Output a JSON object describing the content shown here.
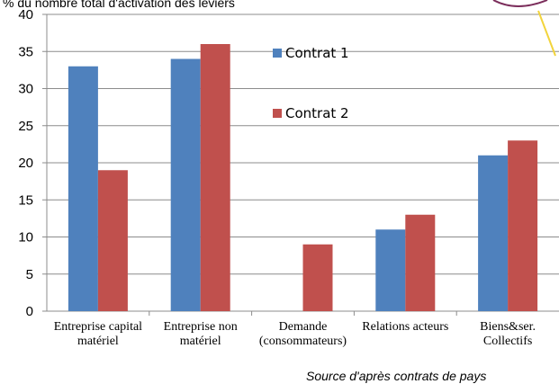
{
  "chart_data": {
    "type": "bar",
    "ylabel": "% du nombre total d'activation des leviers",
    "categories": [
      [
        "Entreprise capital",
        "matériel"
      ],
      [
        "Entreprise non",
        "matériel"
      ],
      [
        "Demande",
        "(consommateurs)"
      ],
      [
        "Relations acteurs"
      ],
      [
        "Biens&ser.",
        "Collectifs"
      ]
    ],
    "series": [
      {
        "name": "Contrat 1",
        "color": "#4F81BD",
        "values": [
          33,
          34,
          0,
          11,
          21
        ]
      },
      {
        "name": "Contrat 2",
        "color": "#C0504D",
        "values": [
          19,
          36,
          9,
          13,
          23
        ]
      }
    ],
    "ylim": [
      0,
      40
    ],
    "yticks": [
      "0",
      "5",
      "10",
      "15",
      "20",
      "25",
      "30",
      "35",
      "40"
    ],
    "grid": true,
    "legend_position": "top-center inside plot"
  },
  "source_note": "Source d'après contrats de pays"
}
